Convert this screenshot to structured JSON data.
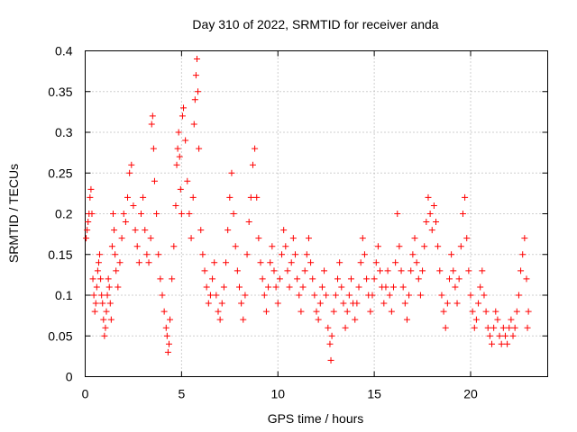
{
  "chart_data": {
    "type": "scatter",
    "title": "Day 310 of 2022, SRMTID for receiver anda",
    "xlabel": "GPS time / hours",
    "ylabel": "SRMTID / TECUs",
    "xlim": [
      0,
      24
    ],
    "ylim": [
      0,
      0.4
    ],
    "xticks": [
      0,
      5,
      10,
      15,
      20
    ],
    "xtick_labels": [
      "0",
      "5",
      "10",
      "15",
      "20"
    ],
    "yticks": [
      0,
      0.05,
      0.1,
      0.15,
      0.2,
      0.25,
      0.3,
      0.35,
      0.4
    ],
    "ytick_labels": [
      "0",
      "0.05",
      "0.1",
      "0.15",
      "0.2",
      "0.25",
      "0.3",
      "0.35",
      "0.4"
    ],
    "grid": true,
    "marker": "plus",
    "color": "#ff0000",
    "series": [
      {
        "name": "SRMTID",
        "points": [
          [
            0.05,
            0.17
          ],
          [
            0.1,
            0.18
          ],
          [
            0.15,
            0.19
          ],
          [
            0.2,
            0.2
          ],
          [
            0.25,
            0.22
          ],
          [
            0.3,
            0.23
          ],
          [
            0.35,
            0.2
          ],
          [
            0.4,
            0.12
          ],
          [
            0.45,
            0.1
          ],
          [
            0.5,
            0.08
          ],
          [
            0.55,
            0.09
          ],
          [
            0.6,
            0.11
          ],
          [
            0.65,
            0.13
          ],
          [
            0.7,
            0.14
          ],
          [
            0.75,
            0.15
          ],
          [
            0.8,
            0.12
          ],
          [
            0.85,
            0.1
          ],
          [
            0.9,
            0.09
          ],
          [
            0.95,
            0.07
          ],
          [
            1.0,
            0.05
          ],
          [
            1.05,
            0.06
          ],
          [
            1.1,
            0.08
          ],
          [
            1.15,
            0.1
          ],
          [
            1.2,
            0.12
          ],
          [
            1.25,
            0.11
          ],
          [
            1.3,
            0.09
          ],
          [
            1.35,
            0.07
          ],
          [
            1.4,
            0.16
          ],
          [
            1.45,
            0.2
          ],
          [
            1.5,
            0.18
          ],
          [
            1.55,
            0.15
          ],
          [
            1.6,
            0.13
          ],
          [
            1.7,
            0.11
          ],
          [
            1.8,
            0.14
          ],
          [
            1.9,
            0.17
          ],
          [
            2.0,
            0.2
          ],
          [
            2.1,
            0.19
          ],
          [
            2.2,
            0.22
          ],
          [
            2.3,
            0.25
          ],
          [
            2.4,
            0.26
          ],
          [
            2.5,
            0.21
          ],
          [
            2.6,
            0.18
          ],
          [
            2.7,
            0.16
          ],
          [
            2.8,
            0.14
          ],
          [
            2.9,
            0.2
          ],
          [
            3.0,
            0.22
          ],
          [
            3.1,
            0.18
          ],
          [
            3.2,
            0.15
          ],
          [
            3.3,
            0.14
          ],
          [
            3.4,
            0.17
          ],
          [
            3.45,
            0.31
          ],
          [
            3.5,
            0.32
          ],
          [
            3.55,
            0.28
          ],
          [
            3.6,
            0.24
          ],
          [
            3.7,
            0.2
          ],
          [
            3.8,
            0.15
          ],
          [
            3.9,
            0.12
          ],
          [
            4.0,
            0.1
          ],
          [
            4.1,
            0.08
          ],
          [
            4.2,
            0.06
          ],
          [
            4.25,
            0.05
          ],
          [
            4.3,
            0.03
          ],
          [
            4.35,
            0.04
          ],
          [
            4.4,
            0.07
          ],
          [
            4.5,
            0.12
          ],
          [
            4.6,
            0.16
          ],
          [
            4.7,
            0.21
          ],
          [
            4.75,
            0.26
          ],
          [
            4.8,
            0.28
          ],
          [
            4.85,
            0.3
          ],
          [
            4.9,
            0.27
          ],
          [
            4.95,
            0.23
          ],
          [
            5.0,
            0.2
          ],
          [
            5.05,
            0.32
          ],
          [
            5.1,
            0.33
          ],
          [
            5.2,
            0.29
          ],
          [
            5.3,
            0.24
          ],
          [
            5.4,
            0.2
          ],
          [
            5.5,
            0.17
          ],
          [
            5.6,
            0.22
          ],
          [
            5.65,
            0.31
          ],
          [
            5.7,
            0.34
          ],
          [
            5.75,
            0.37
          ],
          [
            5.8,
            0.39
          ],
          [
            5.85,
            0.35
          ],
          [
            5.9,
            0.28
          ],
          [
            6.0,
            0.18
          ],
          [
            6.1,
            0.15
          ],
          [
            6.2,
            0.13
          ],
          [
            6.3,
            0.11
          ],
          [
            6.4,
            0.09
          ],
          [
            6.5,
            0.1
          ],
          [
            6.6,
            0.12
          ],
          [
            6.7,
            0.14
          ],
          [
            6.8,
            0.1
          ],
          [
            6.9,
            0.08
          ],
          [
            7.0,
            0.07
          ],
          [
            7.1,
            0.09
          ],
          [
            7.2,
            0.11
          ],
          [
            7.3,
            0.14
          ],
          [
            7.4,
            0.18
          ],
          [
            7.5,
            0.22
          ],
          [
            7.6,
            0.25
          ],
          [
            7.7,
            0.2
          ],
          [
            7.8,
            0.16
          ],
          [
            7.9,
            0.13
          ],
          [
            8.0,
            0.11
          ],
          [
            8.1,
            0.09
          ],
          [
            8.2,
            0.07
          ],
          [
            8.3,
            0.1
          ],
          [
            8.4,
            0.15
          ],
          [
            8.5,
            0.19
          ],
          [
            8.6,
            0.22
          ],
          [
            8.7,
            0.26
          ],
          [
            8.8,
            0.28
          ],
          [
            8.9,
            0.22
          ],
          [
            9.0,
            0.17
          ],
          [
            9.1,
            0.14
          ],
          [
            9.2,
            0.12
          ],
          [
            9.3,
            0.1
          ],
          [
            9.4,
            0.08
          ],
          [
            9.5,
            0.11
          ],
          [
            9.6,
            0.14
          ],
          [
            9.7,
            0.16
          ],
          [
            9.8,
            0.13
          ],
          [
            9.9,
            0.11
          ],
          [
            10.0,
            0.09
          ],
          [
            10.1,
            0.12
          ],
          [
            10.2,
            0.15
          ],
          [
            10.3,
            0.18
          ],
          [
            10.4,
            0.16
          ],
          [
            10.5,
            0.13
          ],
          [
            10.6,
            0.11
          ],
          [
            10.7,
            0.14
          ],
          [
            10.8,
            0.17
          ],
          [
            10.9,
            0.15
          ],
          [
            11.0,
            0.12
          ],
          [
            11.1,
            0.1
          ],
          [
            11.2,
            0.08
          ],
          [
            11.3,
            0.11
          ],
          [
            11.4,
            0.13
          ],
          [
            11.5,
            0.15
          ],
          [
            11.6,
            0.17
          ],
          [
            11.7,
            0.14
          ],
          [
            11.8,
            0.12
          ],
          [
            11.9,
            0.1
          ],
          [
            12.0,
            0.08
          ],
          [
            12.1,
            0.07
          ],
          [
            12.2,
            0.09
          ],
          [
            12.3,
            0.11
          ],
          [
            12.4,
            0.13
          ],
          [
            12.5,
            0.1
          ],
          [
            12.6,
            0.06
          ],
          [
            12.7,
            0.04
          ],
          [
            12.75,
            0.02
          ],
          [
            12.8,
            0.05
          ],
          [
            12.9,
            0.08
          ],
          [
            13.0,
            0.1
          ],
          [
            13.1,
            0.12
          ],
          [
            13.2,
            0.14
          ],
          [
            13.3,
            0.11
          ],
          [
            13.4,
            0.09
          ],
          [
            13.5,
            0.06
          ],
          [
            13.6,
            0.08
          ],
          [
            13.7,
            0.1
          ],
          [
            13.8,
            0.12
          ],
          [
            13.9,
            0.09
          ],
          [
            14.0,
            0.07
          ],
          [
            14.1,
            0.09
          ],
          [
            14.2,
            0.11
          ],
          [
            14.3,
            0.14
          ],
          [
            14.4,
            0.17
          ],
          [
            14.5,
            0.15
          ],
          [
            14.6,
            0.12
          ],
          [
            14.7,
            0.1
          ],
          [
            14.8,
            0.08
          ],
          [
            14.9,
            0.1
          ],
          [
            15.0,
            0.12
          ],
          [
            15.1,
            0.14
          ],
          [
            15.2,
            0.16
          ],
          [
            15.3,
            0.13
          ],
          [
            15.4,
            0.11
          ],
          [
            15.5,
            0.09
          ],
          [
            15.6,
            0.11
          ],
          [
            15.7,
            0.13
          ],
          [
            15.8,
            0.1
          ],
          [
            15.9,
            0.08
          ],
          [
            16.0,
            0.11
          ],
          [
            16.1,
            0.14
          ],
          [
            16.2,
            0.2
          ],
          [
            16.3,
            0.16
          ],
          [
            16.4,
            0.13
          ],
          [
            16.5,
            0.11
          ],
          [
            16.6,
            0.09
          ],
          [
            16.7,
            0.07
          ],
          [
            16.8,
            0.1
          ],
          [
            16.9,
            0.13
          ],
          [
            17.0,
            0.15
          ],
          [
            17.1,
            0.17
          ],
          [
            17.2,
            0.14
          ],
          [
            17.3,
            0.12
          ],
          [
            17.4,
            0.1
          ],
          [
            17.5,
            0.13
          ],
          [
            17.6,
            0.16
          ],
          [
            17.7,
            0.19
          ],
          [
            17.8,
            0.22
          ],
          [
            17.9,
            0.2
          ],
          [
            18.0,
            0.18
          ],
          [
            18.1,
            0.21
          ],
          [
            18.2,
            0.19
          ],
          [
            18.3,
            0.16
          ],
          [
            18.4,
            0.13
          ],
          [
            18.5,
            0.1
          ],
          [
            18.6,
            0.08
          ],
          [
            18.7,
            0.06
          ],
          [
            18.8,
            0.09
          ],
          [
            18.9,
            0.12
          ],
          [
            19.0,
            0.15
          ],
          [
            19.1,
            0.13
          ],
          [
            19.2,
            0.11
          ],
          [
            19.3,
            0.09
          ],
          [
            19.4,
            0.12
          ],
          [
            19.5,
            0.16
          ],
          [
            19.6,
            0.2
          ],
          [
            19.7,
            0.22
          ],
          [
            19.8,
            0.17
          ],
          [
            19.9,
            0.13
          ],
          [
            20.0,
            0.1
          ],
          [
            20.1,
            0.08
          ],
          [
            20.2,
            0.06
          ],
          [
            20.3,
            0.07
          ],
          [
            20.4,
            0.09
          ],
          [
            20.5,
            0.11
          ],
          [
            20.6,
            0.13
          ],
          [
            20.7,
            0.1
          ],
          [
            20.8,
            0.08
          ],
          [
            20.9,
            0.06
          ],
          [
            21.0,
            0.05
          ],
          [
            21.1,
            0.04
          ],
          [
            21.2,
            0.06
          ],
          [
            21.3,
            0.08
          ],
          [
            21.4,
            0.07
          ],
          [
            21.5,
            0.05
          ],
          [
            21.6,
            0.04
          ],
          [
            21.7,
            0.06
          ],
          [
            21.8,
            0.05
          ],
          [
            21.9,
            0.04
          ],
          [
            22.0,
            0.06
          ],
          [
            22.1,
            0.07
          ],
          [
            22.2,
            0.05
          ],
          [
            22.3,
            0.06
          ],
          [
            22.4,
            0.08
          ],
          [
            22.5,
            0.1
          ],
          [
            22.6,
            0.13
          ],
          [
            22.7,
            0.15
          ],
          [
            22.8,
            0.17
          ],
          [
            22.9,
            0.12
          ],
          [
            23.0,
            0.08
          ],
          [
            22.95,
            0.06
          ]
        ]
      }
    ]
  }
}
